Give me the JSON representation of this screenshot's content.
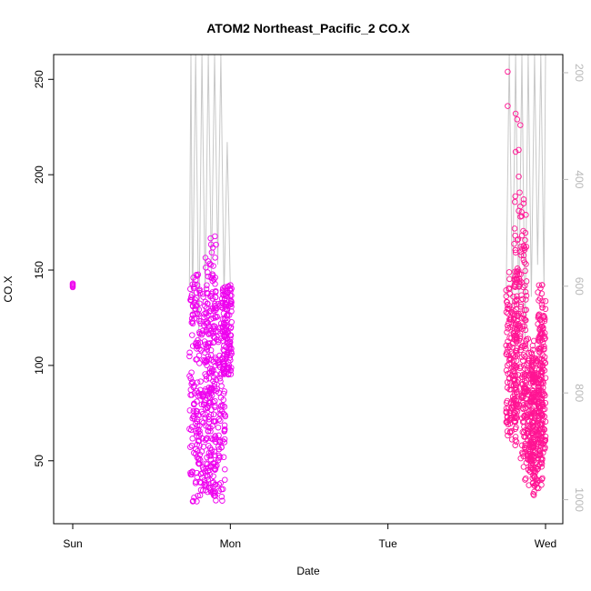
{
  "chart_data": {
    "type": "scatter",
    "title": "ATOM2 Northeast_Pacific_2 CO.X",
    "xlabel": "Date",
    "ylabel": "CO.X",
    "x_ticks": [
      "Sun",
      "Mon",
      "Tue",
      "Wed"
    ],
    "xlim": [
      0,
      3.12
    ],
    "ylim": [
      17,
      263
    ],
    "y_ticks": [
      50,
      100,
      150,
      200,
      250
    ],
    "y2_ticks": [
      200,
      400,
      600,
      800,
      1000
    ],
    "y2lim": [
      1045,
      166
    ],
    "grid": false,
    "colors": {
      "points_flight1": "#ee00ee",
      "points_flight2": "#ff1493",
      "altitude_line": "#c8c8c8",
      "right_axis": "#b8b8b8"
    },
    "series": [
      {
        "values": [
          [
            0.0,
            141.5
          ],
          [
            0.0,
            142.5
          ],
          [
            0.0,
            143.0
          ],
          [
            0.0,
            142.0
          ],
          [
            0.0,
            141.0
          ]
        ]
      },
      {
        "clusters": [
          {
            "x": [
              0.74,
              0.81
            ],
            "y": [
              28,
              148
            ]
          },
          {
            "x": [
              0.8,
              0.88
            ],
            "y": [
              34,
              140
            ]
          },
          {
            "x": [
              0.84,
              0.91
            ],
            "y": [
              30,
              168
            ]
          },
          {
            "x": [
              0.89,
              0.97
            ],
            "y": [
              29,
              142
            ]
          },
          {
            "x": [
              0.95,
              1.01
            ],
            "y": [
              95,
              143
            ]
          }
        ]
      },
      {
        "clusters": [
          {
            "x": [
              2.75,
              2.82
            ],
            "y": [
              50,
              175
            ]
          },
          {
            "x": [
              2.8,
              2.88
            ],
            "y": [
              48,
              232
            ]
          },
          {
            "x": [
              2.85,
              2.93
            ],
            "y": [
              30,
              140
            ]
          },
          {
            "x": [
              2.9,
              2.98
            ],
            "y": [
              28,
              130
            ]
          },
          {
            "x": [
              2.95,
              3.0
            ],
            "y": [
              40,
              172
            ]
          }
        ],
        "outliers": [
          [
            2.76,
            254
          ],
          [
            2.76,
            236
          ],
          [
            2.81,
            232
          ],
          [
            2.82,
            229
          ],
          [
            2.84,
            226
          ],
          [
            2.81,
            212
          ],
          [
            2.83,
            213
          ],
          [
            2.83,
            199
          ]
        ]
      },
      {
        "values": [
          [
            0.74,
            600
          ],
          [
            0.75,
            150
          ],
          [
            0.76,
            650
          ],
          [
            0.78,
            150
          ],
          [
            0.8,
            700
          ],
          [
            0.82,
            150
          ],
          [
            0.84,
            620
          ],
          [
            0.86,
            150
          ],
          [
            0.88,
            580
          ],
          [
            0.9,
            150
          ],
          [
            0.92,
            560
          ],
          [
            0.94,
            150
          ],
          [
            0.96,
            620
          ],
          [
            0.98,
            330
          ],
          [
            1.0,
            600
          ],
          [
            2.75,
            620
          ],
          [
            2.77,
            150
          ],
          [
            2.79,
            640
          ],
          [
            2.81,
            150
          ],
          [
            2.83,
            660
          ],
          [
            2.85,
            150
          ],
          [
            2.87,
            700
          ],
          [
            2.89,
            150
          ],
          [
            2.91,
            620
          ],
          [
            2.93,
            150
          ],
          [
            2.95,
            560
          ],
          [
            2.97,
            150
          ],
          [
            2.99,
            600
          ],
          [
            3.0,
            150
          ]
        ]
      }
    ]
  }
}
